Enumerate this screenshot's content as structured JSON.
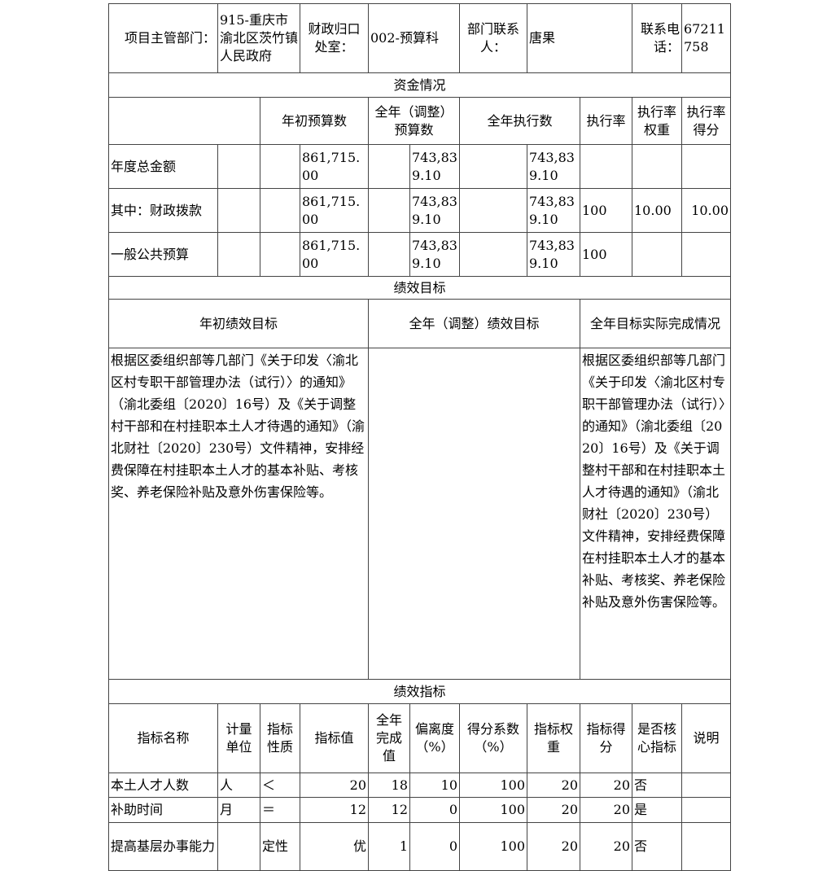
{
  "header": {
    "dept_label": "项目主管部门：",
    "dept_value": "915-重庆市渝北区茨竹镇人民政府",
    "office_label": "财政归口处室：",
    "office_value": "002-预算科",
    "contact_label": "部门联系人：",
    "contact_value": "唐果",
    "phone_label": "联系电话：",
    "phone_value": "67211758"
  },
  "funds": {
    "section_title": "资金情况",
    "columns": [
      "年初预算数",
      "全年（调整）预算数",
      "全年执行数",
      "执行率",
      "执行率权重",
      "执行率得分"
    ],
    "rows": [
      {
        "label": "年度总金额",
        "initial": "861,715.00",
        "adjusted": "743,839.10",
        "executed": "743,839.10",
        "rate": "",
        "weight": "",
        "score": ""
      },
      {
        "label": "其中：财政拨款",
        "initial": "861,715.00",
        "adjusted": "743,839.10",
        "executed": "743,839.10",
        "rate": "100",
        "weight": "10.00",
        "score": "10.00"
      },
      {
        "label": "一般公共预算",
        "initial": "861,715.00",
        "adjusted": "743,839.10",
        "executed": "743,839.10",
        "rate": "100",
        "weight": "",
        "score": ""
      }
    ]
  },
  "goals": {
    "section_title": "绩效目标",
    "columns": [
      "年初绩效目标",
      "全年（调整）绩效目标",
      "全年目标实际完成情况"
    ],
    "initial": "根据区委组织部等几部门《关于印发〈渝北区村专职干部管理办法（试行）〉的通知》（渝北委组〔2020〕16号）及《关于调整村干部和在村挂职本土人才待遇的通知》（渝北财社〔2020〕230号）文件精神，安排经费保障在村挂职本土人才的基本补贴、考核奖、养老保险补贴及意外伤害保险等。",
    "adjusted": "",
    "actual": "根据区委组织部等几部门《关于印发〈渝北区村专职干部管理办法（试行）〉的通知》（渝北委组〔2020〕16号）及《关于调整村干部和在村挂职本土人才待遇的通知》（渝北财社〔2020〕230号）文件精神，安排经费保障在村挂职本土人才的基本补贴、考核奖、养老保险补贴及意外伤害保险等。"
  },
  "indicators": {
    "section_title": "绩效指标",
    "columns": [
      "指标名称",
      "计量单位",
      "指标性质",
      "指标值",
      "全年完成值",
      "偏离度（%）",
      "得分系数（%）",
      "指标权重",
      "指标得分",
      "是否核心指标",
      "说明"
    ],
    "rows": [
      [
        "本土人才人数",
        "人",
        "＜",
        "20",
        "18",
        "10",
        "100",
        "20",
        "20",
        "否",
        ""
      ],
      [
        "补助时间",
        "月",
        "＝",
        "12",
        "12",
        "0",
        "100",
        "20",
        "20",
        "是",
        ""
      ],
      [
        "提高基层办事能力",
        "",
        "定性",
        "优",
        "1",
        "0",
        "100",
        "20",
        "20",
        "否",
        ""
      ]
    ]
  }
}
